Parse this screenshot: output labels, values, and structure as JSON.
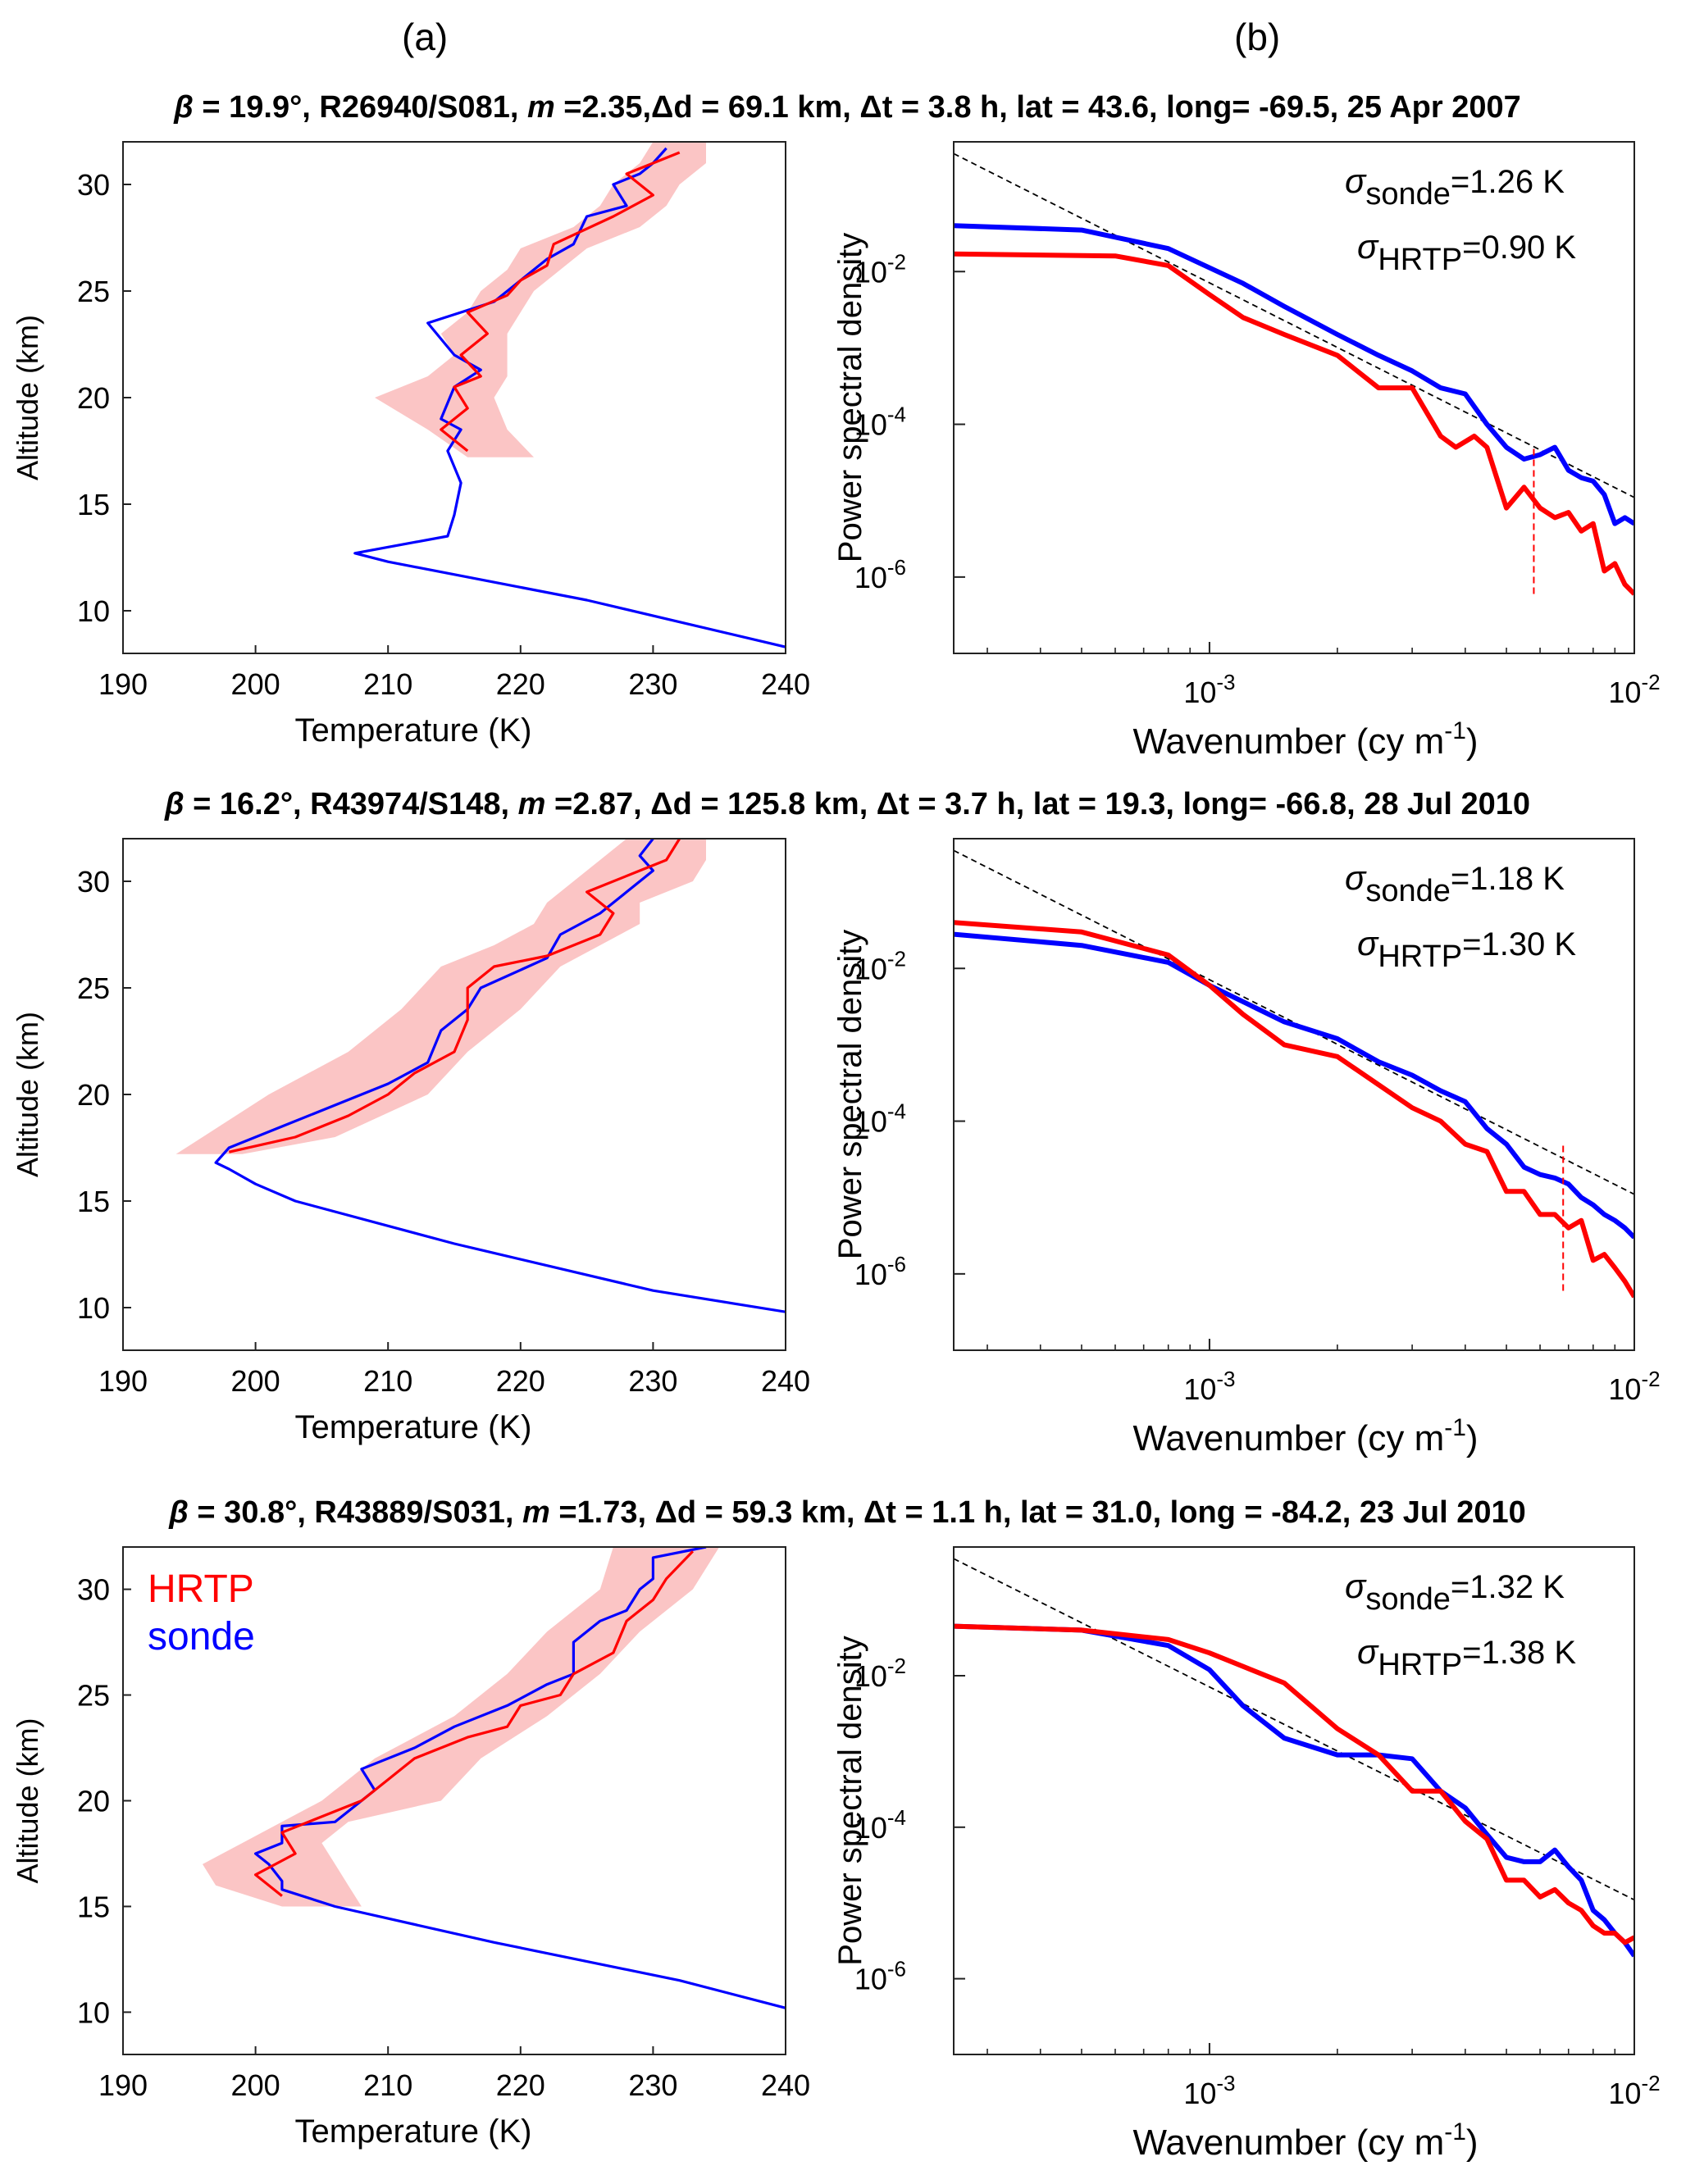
{
  "panel_labels": {
    "a": "(a)",
    "b": "(b)"
  },
  "rows": [
    {
      "title": {
        "beta": "β",
        "rest1": " = 19.9°, R26940/S081, ",
        "m": "m",
        "rest2": " =2.35,Δd = 69.1 km, Δt = 3.8 h, lat = 43.6, long= -69.5, 25 Apr 2007"
      },
      "sigma_sonde": "=1.26 K",
      "sigma_hrtp": "=0.90 K"
    },
    {
      "title": {
        "beta": "β",
        "rest1": " = 16.2°, R43974/S148, ",
        "m": "m",
        "rest2": " =2.87, Δd = 125.8 km, Δt = 3.7 h, lat = 19.3, long= -66.8, 28 Jul 2010"
      },
      "sigma_sonde": "=1.18 K",
      "sigma_hrtp": "=1.30 K"
    },
    {
      "title": {
        "beta": "β",
        "rest1": " = 30.8°, R43889/S031, ",
        "m": "m",
        "rest2": " =1.73, Δd = 59.3 km, Δt = 1.1 h, lat = 31.0, long = -84.2, 23 Jul 2010"
      },
      "sigma_sonde": "=1.32 K",
      "sigma_hrtp": "=1.38 K"
    }
  ],
  "labels": {
    "sigma": "σ",
    "sub_sonde": "sonde",
    "sub_hrtp": "HRTP",
    "temp_xlabel": "Temperature (K)",
    "alt_ylabel": "Altitude (km)",
    "psd_ylabel": "Power spectral density",
    "wn_xlabel_main": "Wavenumber (cy m",
    "wn_xlabel_sup": "-1",
    "wn_xlabel_close": ")",
    "legend_hrtp": "HRTP",
    "legend_sonde": "sonde",
    "ten": "10"
  },
  "colors": {
    "hrtp": "#ff0000",
    "sonde": "#0000ff",
    "band": "#fbc5c5",
    "ref": "#000000"
  },
  "chart_data": [
    {
      "type": "line",
      "panel": "1a",
      "xlabel": "Temperature (K)",
      "ylabel": "Altitude (km)",
      "xlim": [
        190,
        240
      ],
      "ylim": [
        8,
        32
      ],
      "xticks": [
        190,
        200,
        210,
        220,
        230,
        240
      ],
      "yticks": [
        10,
        15,
        20,
        25,
        30
      ],
      "series": [
        {
          "name": "sonde",
          "color": "#0000ff",
          "x": [
            240,
            225,
            210,
            207.5,
            214.5,
            215,
            215.5,
            214.5,
            215.5,
            214,
            215,
            217,
            215,
            213,
            218,
            220,
            222,
            224,
            225,
            228,
            227,
            229,
            230,
            231
          ],
          "y": [
            8.3,
            10.5,
            12.3,
            12.7,
            13.5,
            14.5,
            16,
            17.5,
            18.5,
            19,
            20.5,
            21.3,
            22,
            23.5,
            24.5,
            25.5,
            26.5,
            27.2,
            28.5,
            29,
            30,
            30.5,
            31,
            31.7
          ]
        },
        {
          "name": "HRTP",
          "color": "#ff0000",
          "x": [
            216,
            214,
            216,
            215,
            217,
            215.5,
            217.5,
            216,
            219,
            220,
            222,
            222.5,
            227,
            230,
            228,
            232
          ],
          "y": [
            17.5,
            18.5,
            19.5,
            20.5,
            21,
            22,
            23,
            24,
            24.8,
            25.5,
            26.2,
            27.2,
            28.5,
            29.5,
            30.5,
            31.5
          ]
        }
      ],
      "band": {
        "y": [
          17.2,
          18.5,
          20,
          21,
          22,
          23,
          24,
          25,
          26,
          27,
          28,
          29,
          30,
          31,
          32
        ],
        "lower": [
          216,
          213,
          209,
          213,
          215,
          214,
          216,
          217,
          219,
          220,
          224,
          226,
          227,
          229,
          230
        ],
        "upper": [
          221,
          219,
          218,
          219,
          219,
          219,
          220,
          221,
          223,
          225,
          229,
          231,
          232,
          234,
          234
        ]
      }
    },
    {
      "type": "line",
      "panel": "1b",
      "xscale": "log",
      "yscale": "log",
      "xlabel": "Wavenumber (cy m-1)",
      "ylabel": "Power spectral density",
      "xlim": [
        0.00025,
        0.01
      ],
      "ylim": [
        1e-07,
        0.5
      ],
      "series": [
        {
          "name": "sonde",
          "color": "#0000ff",
          "x": [
            0.00025,
            0.0005,
            0.0008,
            0.0012,
            0.0015,
            0.002,
            0.0025,
            0.003,
            0.0035,
            0.004,
            0.0045,
            0.005,
            0.0055,
            0.006,
            0.0065,
            0.007,
            0.0075,
            0.008,
            0.0085,
            0.009,
            0.0095,
            0.01
          ],
          "y": [
            0.04,
            0.035,
            0.02,
            0.007,
            0.0035,
            0.0015,
            0.0008,
            0.0005,
            0.0003,
            0.00025,
            0.0001,
            5e-05,
            3.5e-05,
            4e-05,
            5e-05,
            2.5e-05,
            2e-05,
            1.8e-05,
            1.2e-05,
            5e-06,
            6e-06,
            5e-06
          ]
        },
        {
          "name": "HRTP",
          "color": "#ff0000",
          "x": [
            0.00025,
            0.0006,
            0.0008,
            0.001,
            0.0012,
            0.0015,
            0.002,
            0.0025,
            0.003,
            0.0035,
            0.0038,
            0.0042,
            0.0045,
            0.005,
            0.0055,
            0.006,
            0.0065,
            0.007,
            0.0075,
            0.008,
            0.0085,
            0.009,
            0.0095,
            0.01
          ],
          "y": [
            0.017,
            0.016,
            0.012,
            0.005,
            0.0025,
            0.0015,
            0.0008,
            0.0003,
            0.0003,
            7e-05,
            5e-05,
            7e-05,
            5e-05,
            8e-06,
            1.5e-05,
            8e-06,
            6e-06,
            7e-06,
            4e-06,
            5e-06,
            1.2e-06,
            1.5e-06,
            8e-07,
            6e-07
          ]
        },
        {
          "name": "reference",
          "color": "#000000",
          "dashed": true,
          "x": [
            0.00025,
            0.01
          ],
          "y": [
            0.35,
            1.1e-05
          ]
        }
      ],
      "vline": {
        "x": 0.0058,
        "y": [
          6e-07,
          5e-05
        ]
      }
    },
    {
      "type": "line",
      "panel": "2a",
      "xlabel": "Temperature (K)",
      "ylabel": "Altitude (km)",
      "xlim": [
        190,
        240
      ],
      "ylim": [
        8,
        32
      ],
      "xticks": [
        190,
        200,
        210,
        220,
        230,
        240
      ],
      "yticks": [
        10,
        15,
        20,
        25,
        30
      ],
      "series": [
        {
          "name": "sonde",
          "color": "#0000ff",
          "x": [
            240,
            230,
            215,
            203,
            200,
            198,
            197,
            198,
            202,
            206,
            210,
            213,
            214,
            216,
            217,
            222,
            223,
            226,
            228,
            230,
            229,
            230
          ],
          "y": [
            9.8,
            10.8,
            13,
            15,
            15.8,
            16.5,
            16.8,
            17.5,
            18.5,
            19.5,
            20.5,
            21.5,
            23,
            24,
            25,
            26.4,
            27.5,
            28.5,
            29.5,
            30.5,
            31.2,
            32
          ]
        },
        {
          "name": "HRTP",
          "color": "#ff0000",
          "x": [
            198,
            203,
            207,
            210,
            212,
            215,
            216,
            216,
            218,
            222,
            226,
            227,
            225,
            229,
            231,
            232
          ],
          "y": [
            17.3,
            18,
            19,
            20,
            21,
            22,
            23.5,
            25,
            26,
            26.5,
            27.5,
            28.5,
            29.5,
            30.5,
            31,
            32
          ]
        }
      ],
      "band": {
        "y": [
          17.2,
          18,
          20,
          22,
          24,
          26,
          27,
          28,
          29,
          30,
          31,
          32
        ],
        "lower": [
          194,
          196,
          201,
          207,
          211,
          214,
          218,
          221,
          222,
          224,
          226,
          228
        ],
        "upper": [
          199,
          206,
          213,
          216,
          220,
          223,
          226,
          229,
          229,
          233,
          234,
          234
        ]
      }
    },
    {
      "type": "line",
      "panel": "2b",
      "xscale": "log",
      "yscale": "log",
      "xlabel": "Wavenumber (cy m-1)",
      "ylabel": "Power spectral density",
      "xlim": [
        0.00025,
        0.01
      ],
      "ylim": [
        1e-07,
        0.5
      ],
      "series": [
        {
          "name": "sonde",
          "color": "#0000ff",
          "x": [
            0.00025,
            0.0005,
            0.0008,
            0.001,
            0.0015,
            0.002,
            0.0025,
            0.003,
            0.0035,
            0.004,
            0.0045,
            0.005,
            0.0055,
            0.006,
            0.0065,
            0.007,
            0.0075,
            0.008,
            0.0085,
            0.009,
            0.0095,
            0.01
          ],
          "y": [
            0.028,
            0.02,
            0.012,
            0.006,
            0.002,
            0.0012,
            0.0006,
            0.0004,
            0.00025,
            0.00018,
            8e-05,
            5e-05,
            2.5e-05,
            2e-05,
            1.8e-05,
            1.5e-05,
            1e-05,
            8e-06,
            6e-06,
            5e-06,
            4e-06,
            3e-06
          ]
        },
        {
          "name": "HRTP",
          "color": "#ff0000",
          "x": [
            0.00025,
            0.0005,
            0.0008,
            0.001,
            0.0012,
            0.0015,
            0.002,
            0.0025,
            0.003,
            0.0035,
            0.004,
            0.0045,
            0.005,
            0.0055,
            0.006,
            0.0065,
            0.007,
            0.0075,
            0.008,
            0.0085,
            0.009,
            0.0095,
            0.01
          ],
          "y": [
            0.04,
            0.03,
            0.015,
            0.006,
            0.0025,
            0.001,
            0.0007,
            0.0003,
            0.00015,
            0.0001,
            5e-05,
            4e-05,
            1.2e-05,
            1.2e-05,
            6e-06,
            6e-06,
            4e-06,
            5e-06,
            1.5e-06,
            1.8e-06,
            1.2e-06,
            8e-07,
            5e-07
          ]
        },
        {
          "name": "reference",
          "color": "#000000",
          "dashed": true,
          "x": [
            0.00025,
            0.01
          ],
          "y": [
            0.35,
            1.1e-05
          ]
        }
      ],
      "vline": {
        "x": 0.0068,
        "y": [
          6e-07,
          5e-05
        ]
      }
    },
    {
      "type": "line",
      "panel": "3a",
      "xlabel": "Temperature (K)",
      "ylabel": "Altitude (km)",
      "xlim": [
        190,
        240
      ],
      "ylim": [
        8,
        32
      ],
      "xticks": [
        190,
        200,
        210,
        220,
        230,
        240
      ],
      "yticks": [
        10,
        15,
        20,
        25,
        30
      ],
      "series": [
        {
          "name": "sonde",
          "color": "#0000ff",
          "x": [
            240,
            232,
            218,
            206,
            202,
            202,
            201,
            200,
            202,
            202,
            206,
            209,
            208,
            212,
            215,
            219,
            222,
            224,
            224,
            226,
            228,
            229,
            230,
            230,
            234
          ],
          "y": [
            10.2,
            11.5,
            13.3,
            15,
            15.8,
            16.2,
            17,
            17.5,
            18,
            18.8,
            19,
            20.5,
            21.5,
            22.5,
            23.5,
            24.5,
            25.5,
            26,
            27.5,
            28.5,
            29,
            30,
            30.5,
            31.5,
            32
          ]
        },
        {
          "name": "HRTP",
          "color": "#ff0000",
          "x": [
            202,
            200,
            203,
            202,
            206,
            208,
            210,
            212,
            216,
            219,
            220,
            223,
            224,
            227,
            228,
            230,
            231,
            233
          ],
          "y": [
            15.5,
            16.5,
            17.5,
            18.5,
            19.5,
            20,
            21,
            22,
            23,
            23.5,
            24.5,
            25,
            26,
            27,
            28.5,
            29.5,
            30.5,
            31.8
          ]
        }
      ],
      "band": {
        "y": [
          15,
          16,
          17,
          18,
          19,
          20,
          22,
          24,
          26,
          28,
          30,
          32
        ],
        "lower": [
          202,
          197,
          196,
          199,
          202,
          205,
          209,
          215,
          219,
          222,
          226,
          227
        ],
        "upper": [
          208,
          207,
          206,
          205,
          207,
          214,
          217,
          222,
          226,
          229,
          233,
          235
        ]
      }
    },
    {
      "type": "line",
      "panel": "3b",
      "xscale": "log",
      "yscale": "log",
      "xlabel": "Wavenumber (cy m-1)",
      "ylabel": "Power spectral density",
      "xlim": [
        0.00025,
        0.01
      ],
      "ylim": [
        1e-07,
        0.5
      ],
      "series": [
        {
          "name": "sonde",
          "color": "#0000ff",
          "x": [
            0.00025,
            0.0005,
            0.0008,
            0.001,
            0.0012,
            0.0015,
            0.002,
            0.0025,
            0.003,
            0.0035,
            0.004,
            0.0045,
            0.005,
            0.0055,
            0.006,
            0.0065,
            0.007,
            0.0075,
            0.008,
            0.0085,
            0.009,
            0.0095,
            0.01
          ],
          "y": [
            0.045,
            0.04,
            0.025,
            0.012,
            0.004,
            0.0015,
            0.0009,
            0.0009,
            0.0008,
            0.0003,
            0.00018,
            8e-05,
            4e-05,
            3.5e-05,
            3.5e-05,
            5e-05,
            3e-05,
            2e-05,
            8e-06,
            6e-06,
            4e-06,
            3e-06,
            2e-06
          ]
        },
        {
          "name": "HRTP",
          "color": "#ff0000",
          "x": [
            0.00025,
            0.0005,
            0.0008,
            0.001,
            0.0015,
            0.002,
            0.0025,
            0.003,
            0.0035,
            0.004,
            0.0045,
            0.005,
            0.0055,
            0.006,
            0.0065,
            0.007,
            0.0075,
            0.008,
            0.0085,
            0.009,
            0.0095,
            0.01
          ],
          "y": [
            0.045,
            0.04,
            0.03,
            0.02,
            0.008,
            0.002,
            0.0009,
            0.0003,
            0.0003,
            0.00012,
            7e-05,
            2e-05,
            2e-05,
            1.2e-05,
            1.5e-05,
            1e-05,
            8e-06,
            5e-06,
            4e-06,
            4e-06,
            3e-06,
            3.5e-06
          ]
        },
        {
          "name": "reference",
          "color": "#000000",
          "dashed": true,
          "x": [
            0.00025,
            0.01
          ],
          "y": [
            0.35,
            1.1e-05
          ]
        }
      ]
    }
  ]
}
